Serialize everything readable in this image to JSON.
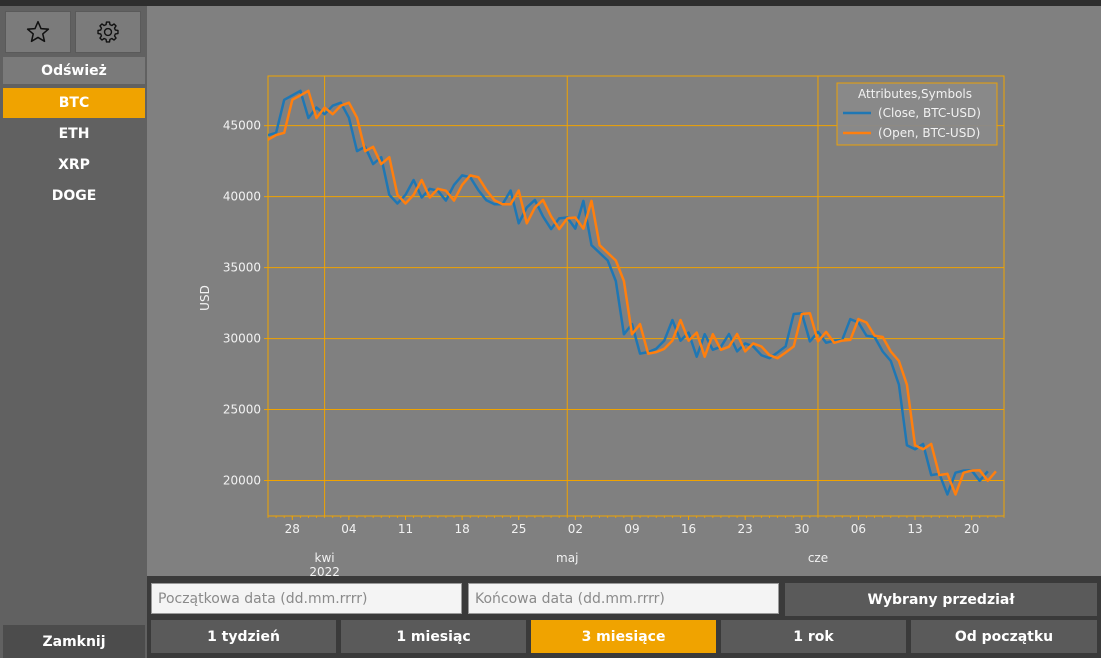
{
  "sidebar": {
    "favorites_icon": "star-icon",
    "settings_icon": "gear-icon",
    "refresh_label": "Odśwież",
    "coins": [
      {
        "label": "BTC",
        "active": true
      },
      {
        "label": "ETH",
        "active": false
      },
      {
        "label": "XRP",
        "active": false
      },
      {
        "label": "DOGE",
        "active": false
      }
    ],
    "close_label": "Zamknij"
  },
  "controls": {
    "start_placeholder": "Początkowa data (dd.mm.rrrr)",
    "end_placeholder": "Końcowa data (dd.mm.rrrr)",
    "range_label": "Wybrany przedział",
    "periods": [
      {
        "label": "1 tydzień",
        "active": false
      },
      {
        "label": "1 miesiąc",
        "active": false
      },
      {
        "label": "3 miesiące",
        "active": true
      },
      {
        "label": "1 rok",
        "active": false
      },
      {
        "label": "Od początku",
        "active": false
      }
    ]
  },
  "colors": {
    "accent": "#f0a300",
    "close_series": "#1f77b4",
    "open_series": "#ff7f0e",
    "grid": "#f0a300",
    "plot_bg": "#808080"
  },
  "chart_data": {
    "type": "line",
    "ylabel": "USD",
    "ylim": [
      17500,
      48500
    ],
    "yticks": [
      20000,
      25000,
      30000,
      35000,
      40000,
      45000
    ],
    "xlim": [
      "2022-03-25",
      "2022-06-24"
    ],
    "xticks": [
      {
        "date": "2022-03-28",
        "label": "28"
      },
      {
        "date": "2022-04-04",
        "label": "04"
      },
      {
        "date": "2022-04-11",
        "label": "11"
      },
      {
        "date": "2022-04-18",
        "label": "18"
      },
      {
        "date": "2022-04-25",
        "label": "25"
      },
      {
        "date": "2022-05-02",
        "label": "02"
      },
      {
        "date": "2022-05-09",
        "label": "09"
      },
      {
        "date": "2022-05-16",
        "label": "16"
      },
      {
        "date": "2022-05-23",
        "label": "23"
      },
      {
        "date": "2022-05-30",
        "label": "30"
      },
      {
        "date": "2022-06-06",
        "label": "06"
      },
      {
        "date": "2022-06-13",
        "label": "13"
      },
      {
        "date": "2022-06-20",
        "label": "20"
      }
    ],
    "month_labels": [
      {
        "date": "2022-04-01",
        "label": "kwi",
        "sublabel": "2022"
      },
      {
        "date": "2022-05-01",
        "label": "maj",
        "sublabel": ""
      },
      {
        "date": "2022-06-01",
        "label": "cze",
        "sublabel": ""
      }
    ],
    "month_gridlines": [
      "2022-04-01",
      "2022-05-01",
      "2022-06-01"
    ],
    "legend": {
      "title": "Attributes,Symbols",
      "position": "top-right"
    },
    "grid": true,
    "series": [
      {
        "name": "(Close, BTC-USD)",
        "start": "2022-03-25",
        "values": [
          44330,
          44500,
          46820,
          47130,
          47460,
          45540,
          46280,
          45810,
          46410,
          46620,
          45560,
          43210,
          43510,
          42290,
          42780,
          40130,
          39520,
          40130,
          41170,
          39940,
          40550,
          40420,
          39720,
          40830,
          41500,
          41370,
          40460,
          39740,
          39470,
          39460,
          40430,
          38120,
          39240,
          39770,
          38610,
          37710,
          38470,
          38530,
          37750,
          39700,
          36580,
          36040,
          35500,
          34060,
          30300,
          31020,
          28940,
          29050,
          29280,
          29860,
          31310,
          29850,
          30420,
          28720,
          30310,
          29210,
          29430,
          30320,
          29100,
          29660,
          29440,
          28830,
          28620,
          29020,
          29450,
          31730,
          31790,
          29800,
          30470,
          29700,
          29860,
          29910,
          31370,
          31130,
          30200,
          30110,
          29090,
          28420,
          26760,
          22490,
          22200,
          22580,
          20380,
          20470,
          19020,
          20550,
          20700,
          20720,
          19980,
          20650
        ]
      },
      {
        "name": "(Open, BTC-USD)",
        "start": "2022-03-25",
        "values": [
          44010,
          44340,
          44500,
          46820,
          47130,
          47460,
          45540,
          46280,
          45810,
          46410,
          46620,
          45560,
          43210,
          43510,
          42290,
          42780,
          40130,
          39520,
          40130,
          41170,
          39940,
          40550,
          40420,
          39720,
          40830,
          41500,
          41370,
          40460,
          39740,
          39470,
          39460,
          40430,
          38120,
          39240,
          39770,
          38610,
          37710,
          38470,
          38530,
          37750,
          39700,
          36580,
          36040,
          35500,
          34060,
          30300,
          31020,
          28940,
          29050,
          29280,
          29860,
          31310,
          29850,
          30420,
          28720,
          30310,
          29210,
          29430,
          30320,
          29100,
          29660,
          29440,
          28830,
          28620,
          29020,
          29450,
          31730,
          31790,
          29800,
          30470,
          29700,
          29860,
          29910,
          31370,
          31130,
          30200,
          30110,
          29090,
          28420,
          26760,
          22490,
          22200,
          22580,
          20380,
          20470,
          19020,
          20550,
          20700,
          20720,
          19980,
          20650
        ]
      }
    ]
  }
}
